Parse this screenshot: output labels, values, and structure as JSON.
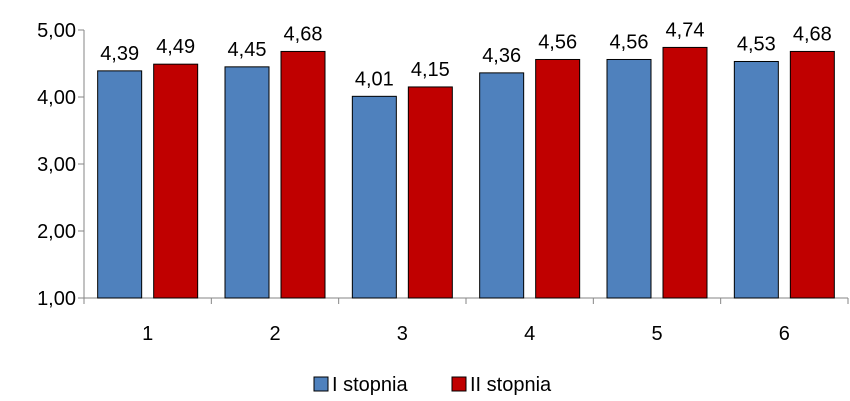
{
  "chart_data": {
    "type": "bar",
    "categories": [
      "1",
      "2",
      "3",
      "4",
      "5",
      "6"
    ],
    "series": [
      {
        "name": "I stopnia",
        "values": [
          4.39,
          4.45,
          4.01,
          4.36,
          4.56,
          4.53
        ],
        "color": "#4f81bd"
      },
      {
        "name": "II stopnia",
        "values": [
          4.49,
          4.68,
          4.15,
          4.56,
          4.74,
          4.68
        ],
        "color": "#c00000"
      }
    ],
    "data_labels": [
      [
        "4,39",
        "4,45",
        "4,01",
        "4,36",
        "4,56",
        "4,53"
      ],
      [
        "4,49",
        "4,68",
        "4,15",
        "4,56",
        "4,74",
        "4,68"
      ]
    ],
    "y_ticks": [
      {
        "value": 1,
        "label": "1,00"
      },
      {
        "value": 2,
        "label": "2,00"
      },
      {
        "value": 3,
        "label": "3,00"
      },
      {
        "value": 4,
        "label": "4,00"
      },
      {
        "value": 5,
        "label": "5,00"
      }
    ],
    "ylim": [
      1,
      5
    ],
    "grid": false,
    "legend_position": "bottom",
    "title": "",
    "xlabel": "",
    "ylabel": ""
  }
}
